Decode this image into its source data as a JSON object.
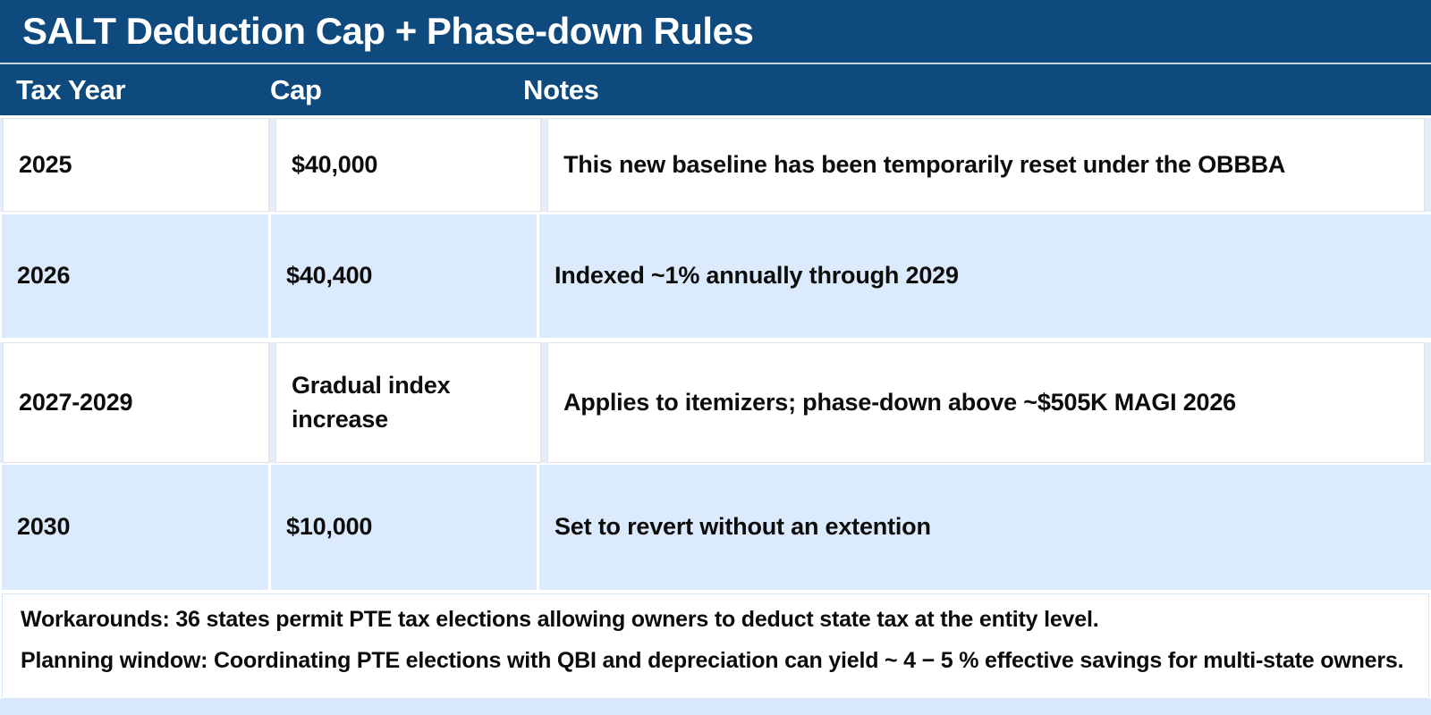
{
  "title": "SALT Deduction Cap + Phase-down Rules",
  "table": {
    "columns": [
      "Tax Year",
      "Cap",
      "Notes"
    ],
    "rows": [
      {
        "year": "2025",
        "cap": "$40,000",
        "notes": "This new baseline has been temporarily reset under the OBBBA"
      },
      {
        "year": "2026",
        "cap": "$40,400",
        "notes": "Indexed ~1% annually through 2029"
      },
      {
        "year": "2027-2029",
        "cap": "Gradual index increase",
        "notes": "Applies to itemizers; phase-down above ~$505K MAGI 2026"
      },
      {
        "year": "2030",
        "cap": "$10,000",
        "notes": "Set to revert without an extention"
      }
    ]
  },
  "footer": {
    "line1": "Workarounds: 36 states permit PTE tax elections allowing owners to deduct state tax at the entity level.",
    "line2": "Planning window: Coordinating PTE elections with QBI and depreciation can yield ~ 4 − 5 % effective savings for multi-state owners."
  },
  "colors": {
    "header_bg": "#0e4a7d",
    "row_alt_bg": "#dbeafc",
    "row_gap_bg": "#e4eefb",
    "bottom_strip_bg": "#d9e9fb",
    "text": "#0d0d0d"
  }
}
